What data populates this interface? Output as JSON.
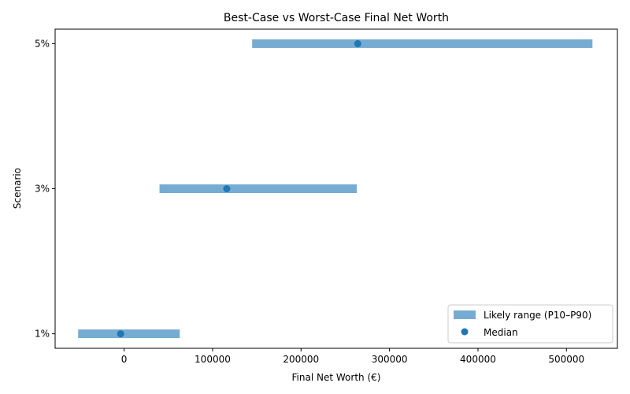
{
  "chart_data": {
    "type": "range",
    "title": "Best-Case vs Worst-Case Final Net Worth",
    "xlabel": "Final Net Worth (€)",
    "ylabel": "Scenario",
    "categories": [
      "1%",
      "3%",
      "5%"
    ],
    "series": [
      {
        "name": "Likely range (P10–P90)",
        "kind": "range",
        "low": [
          -52000,
          40000,
          144700
        ],
        "high": [
          62900,
          263000,
          529400
        ],
        "color": "#76acd2"
      },
      {
        "name": "Median",
        "kind": "scatter",
        "values": [
          -3900,
          116000,
          264100
        ],
        "color": "#1f77b4"
      }
    ],
    "xlim": [
      -78000,
      557600
    ],
    "xticks": [
      0,
      100000,
      200000,
      300000,
      400000,
      500000
    ],
    "xtick_labels": [
      "0",
      "100000",
      "200000",
      "300000",
      "400000",
      "500000"
    ],
    "ylim": [
      -0.1,
      2.1
    ],
    "grid": false,
    "legend": {
      "placement": "bottom-right",
      "entries": [
        "Likely range (P10–P90)",
        "Median"
      ]
    }
  }
}
